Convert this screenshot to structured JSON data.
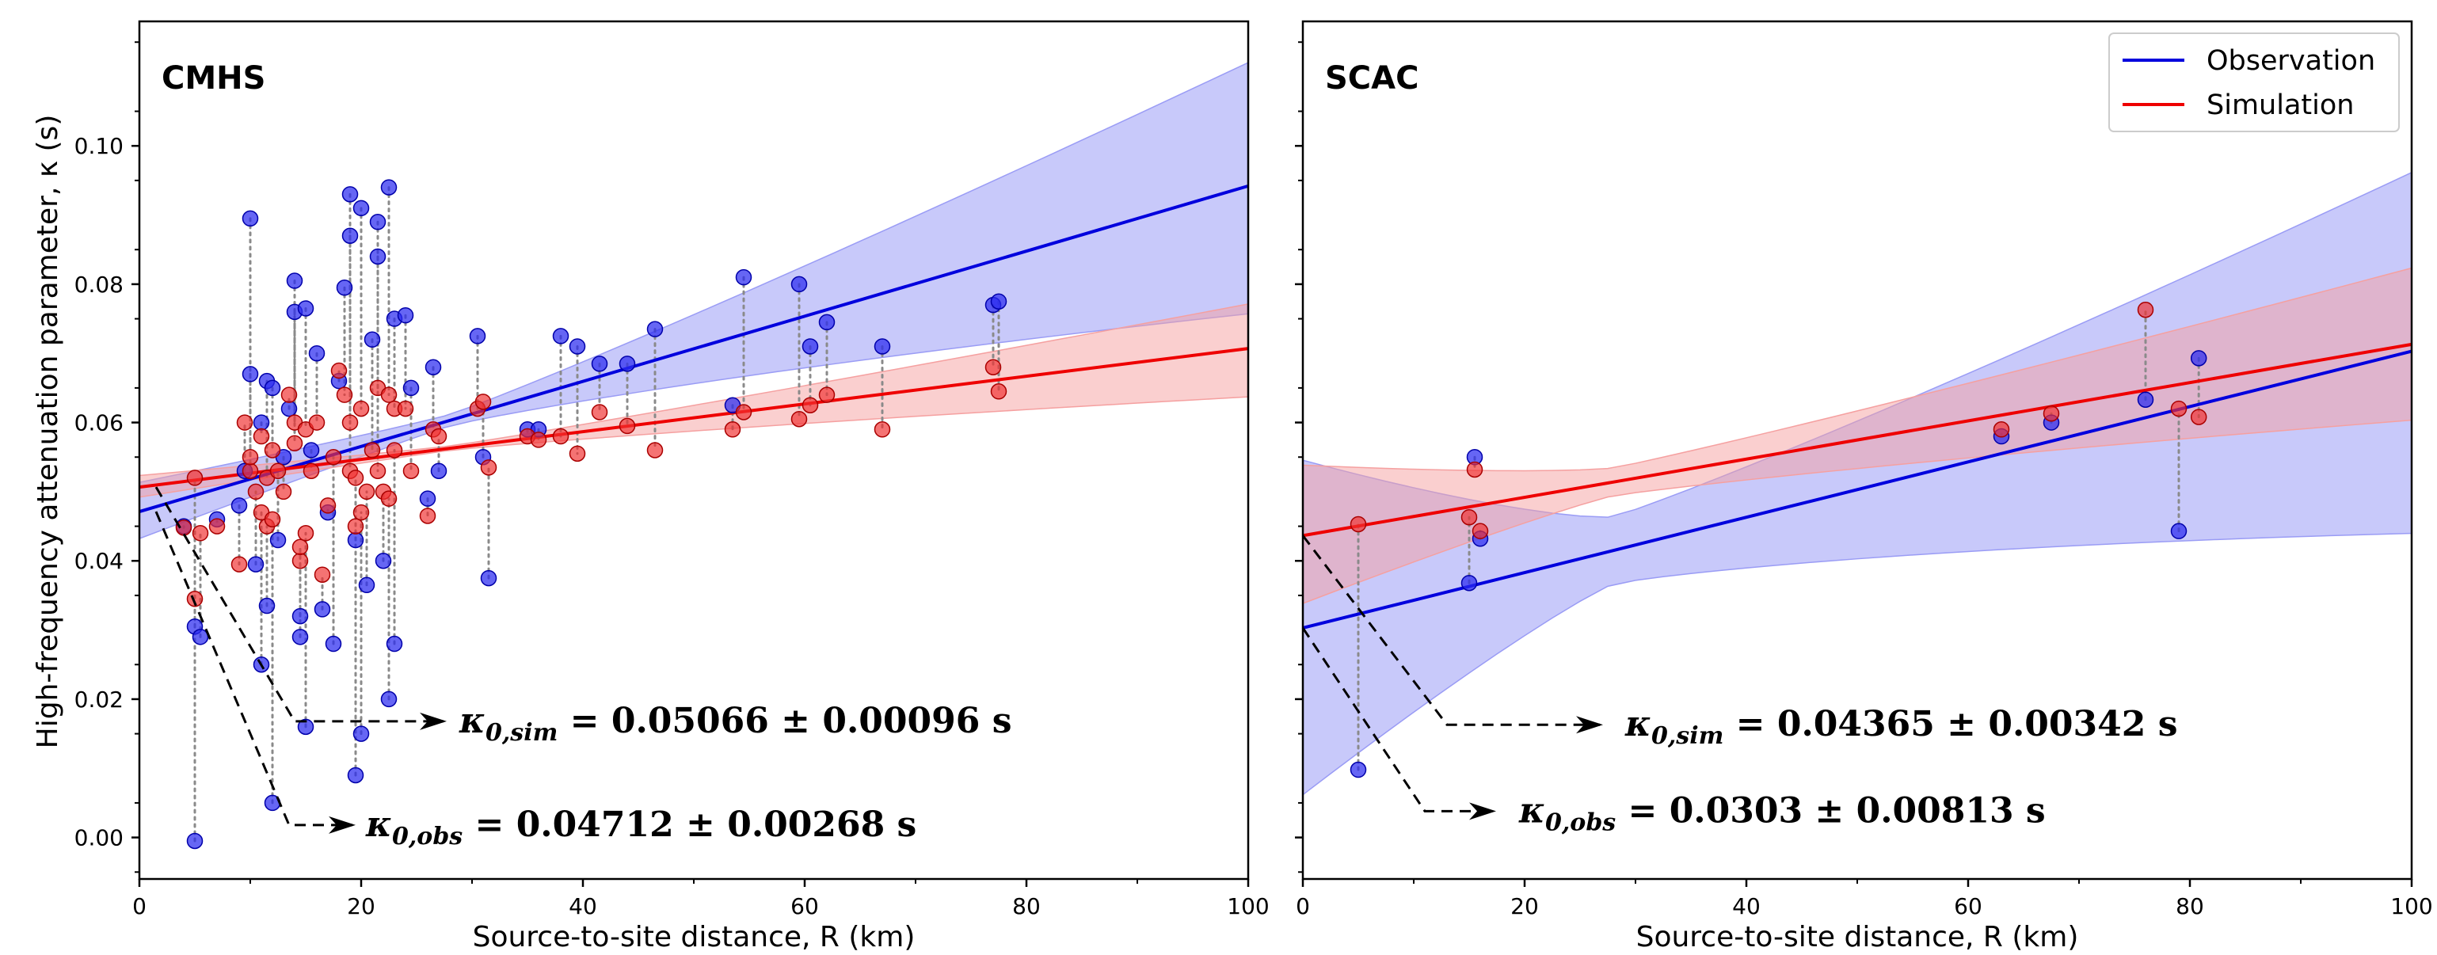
{
  "figure": {
    "ylabel": "High-frequency attenuation parameter, κ (s)",
    "xlabel": "Source-to-site distance, R (km)",
    "legend": {
      "location": "top-right of right panel",
      "entries": [
        {
          "label": "Observation",
          "color": "#0000dd"
        },
        {
          "label": "Simulation",
          "color": "#ee0000"
        }
      ]
    },
    "colors": {
      "observation": "#0000dd",
      "simulation": "#ee0000",
      "obs_band": "#9a9cf5",
      "sim_band": "#f5a0a0",
      "marker_obs": "#2b2bf0",
      "marker_sim": "#f03030"
    }
  },
  "chart_data": [
    {
      "type": "scatter",
      "title": "CMHS",
      "xlim": [
        0,
        100
      ],
      "ylim": [
        -0.006,
        0.118
      ],
      "xticks": [
        "0",
        "20",
        "40",
        "60",
        "80",
        "100"
      ],
      "yticks": [
        "0.00",
        "0.02",
        "0.04",
        "0.06",
        "0.08",
        "0.10"
      ],
      "fits": {
        "observation": {
          "x": [
            0,
            100
          ],
          "y": [
            0.04712,
            0.0942
          ],
          "band_lower": [
            0.044,
            0.0765
          ],
          "band_upper": [
            0.0505,
            0.1112
          ]
        },
        "simulation": {
          "x": [
            0,
            100
          ],
          "y": [
            0.05066,
            0.0707
          ],
          "band_lower": [
            0.0495,
            0.064
          ],
          "band_upper": [
            0.052,
            0.0768
          ]
        }
      },
      "annotations": [
        {
          "symbol": "κ",
          "subscript": "0,sim",
          "text": "= 0.05066 ± 0.00096 s",
          "target_y": 0.05066
        },
        {
          "symbol": "κ",
          "subscript": "0,obs",
          "text": "= 0.04712 ± 0.00268 s",
          "target_y": 0.04712
        }
      ],
      "pairs": [
        {
          "x": 4.0,
          "obs": 0.045,
          "sim": 0.0448
        },
        {
          "x": 5.0,
          "obs": -0.0005,
          "sim": 0.0345
        },
        {
          "x": 5.0,
          "obs": 0.0305,
          "sim": 0.052
        },
        {
          "x": 5.5,
          "obs": 0.029,
          "sim": 0.044
        },
        {
          "x": 7.0,
          "obs": 0.046,
          "sim": 0.045
        },
        {
          "x": 9.0,
          "obs": 0.048,
          "sim": 0.0395
        },
        {
          "x": 9.5,
          "obs": 0.053,
          "sim": 0.06
        },
        {
          "x": 10.0,
          "obs": 0.0895,
          "sim": 0.053
        },
        {
          "x": 10.0,
          "obs": 0.067,
          "sim": 0.055
        },
        {
          "x": 10.5,
          "obs": 0.0395,
          "sim": 0.05
        },
        {
          "x": 11.0,
          "obs": 0.025,
          "sim": 0.047
        },
        {
          "x": 11.0,
          "obs": 0.06,
          "sim": 0.058
        },
        {
          "x": 11.5,
          "obs": 0.0335,
          "sim": 0.045
        },
        {
          "x": 11.5,
          "obs": 0.066,
          "sim": 0.052
        },
        {
          "x": 12.0,
          "obs": 0.005,
          "sim": 0.046
        },
        {
          "x": 12.0,
          "obs": 0.065,
          "sim": 0.056
        },
        {
          "x": 12.5,
          "obs": 0.043,
          "sim": 0.053
        },
        {
          "x": 13.0,
          "obs": 0.055,
          "sim": 0.05
        },
        {
          "x": 13.5,
          "obs": 0.062,
          "sim": 0.064
        },
        {
          "x": 14.0,
          "obs": 0.076,
          "sim": 0.06
        },
        {
          "x": 14.0,
          "obs": 0.0805,
          "sim": 0.057
        },
        {
          "x": 14.5,
          "obs": 0.032,
          "sim": 0.04
        },
        {
          "x": 14.5,
          "obs": 0.029,
          "sim": 0.042
        },
        {
          "x": 15.0,
          "obs": 0.016,
          "sim": 0.044
        },
        {
          "x": 15.0,
          "obs": 0.0765,
          "sim": 0.059
        },
        {
          "x": 15.5,
          "obs": 0.056,
          "sim": 0.053
        },
        {
          "x": 16.0,
          "obs": 0.07,
          "sim": 0.06
        },
        {
          "x": 16.5,
          "obs": 0.033,
          "sim": 0.038
        },
        {
          "x": 17.0,
          "obs": 0.047,
          "sim": 0.048
        },
        {
          "x": 17.5,
          "obs": 0.028,
          "sim": 0.055
        },
        {
          "x": 18.0,
          "obs": 0.066,
          "sim": 0.0675
        },
        {
          "x": 18.5,
          "obs": 0.0795,
          "sim": 0.064
        },
        {
          "x": 19.0,
          "obs": 0.093,
          "sim": 0.06
        },
        {
          "x": 19.0,
          "obs": 0.087,
          "sim": 0.053
        },
        {
          "x": 19.5,
          "obs": 0.009,
          "sim": 0.045
        },
        {
          "x": 19.5,
          "obs": 0.043,
          "sim": 0.052
        },
        {
          "x": 20.0,
          "obs": 0.015,
          "sim": 0.047
        },
        {
          "x": 20.0,
          "obs": 0.091,
          "sim": 0.062
        },
        {
          "x": 20.5,
          "obs": 0.0365,
          "sim": 0.05
        },
        {
          "x": 21.0,
          "obs": 0.072,
          "sim": 0.056
        },
        {
          "x": 21.5,
          "obs": 0.089,
          "sim": 0.065
        },
        {
          "x": 21.5,
          "obs": 0.084,
          "sim": 0.053
        },
        {
          "x": 22.0,
          "obs": 0.04,
          "sim": 0.05
        },
        {
          "x": 22.5,
          "obs": 0.094,
          "sim": 0.064
        },
        {
          "x": 22.5,
          "obs": 0.02,
          "sim": 0.049
        },
        {
          "x": 23.0,
          "obs": 0.028,
          "sim": 0.056
        },
        {
          "x": 23.0,
          "obs": 0.075,
          "sim": 0.062
        },
        {
          "x": 24.0,
          "obs": 0.0755,
          "sim": 0.062
        },
        {
          "x": 24.5,
          "obs": 0.065,
          "sim": 0.053
        },
        {
          "x": 26.0,
          "obs": 0.049,
          "sim": 0.0465
        },
        {
          "x": 26.5,
          "obs": 0.068,
          "sim": 0.059
        },
        {
          "x": 27.0,
          "obs": 0.053,
          "sim": 0.058
        },
        {
          "x": 30.5,
          "obs": 0.0725,
          "sim": 0.062
        },
        {
          "x": 31.0,
          "obs": 0.055,
          "sim": 0.063
        },
        {
          "x": 31.5,
          "obs": 0.0375,
          "sim": 0.0535
        },
        {
          "x": 35.0,
          "obs": 0.059,
          "sim": 0.058
        },
        {
          "x": 36.0,
          "obs": 0.059,
          "sim": 0.0575
        },
        {
          "x": 38.0,
          "obs": 0.0725,
          "sim": 0.058
        },
        {
          "x": 39.5,
          "obs": 0.071,
          "sim": 0.0555
        },
        {
          "x": 41.5,
          "obs": 0.0685,
          "sim": 0.0615
        },
        {
          "x": 44.0,
          "obs": 0.0685,
          "sim": 0.0595
        },
        {
          "x": 46.5,
          "obs": 0.0735,
          "sim": 0.056
        },
        {
          "x": 53.5,
          "obs": 0.0625,
          "sim": 0.059
        },
        {
          "x": 54.5,
          "obs": 0.081,
          "sim": 0.0615
        },
        {
          "x": 59.5,
          "obs": 0.08,
          "sim": 0.0605
        },
        {
          "x": 60.5,
          "obs": 0.071,
          "sim": 0.0625
        },
        {
          "x": 62.0,
          "obs": 0.0745,
          "sim": 0.064
        },
        {
          "x": 67.0,
          "obs": 0.071,
          "sim": 0.059
        },
        {
          "x": 77.0,
          "obs": 0.077,
          "sim": 0.068
        },
        {
          "x": 77.5,
          "obs": 0.0775,
          "sim": 0.0645
        }
      ]
    },
    {
      "type": "scatter",
      "title": "SCAC",
      "xlim": [
        0,
        100
      ],
      "ylim": [
        -0.006,
        0.118
      ],
      "xticks": [
        "0",
        "20",
        "40",
        "60",
        "80",
        "100"
      ],
      "yticks": [
        "0.00",
        "0.02",
        "0.04",
        "0.06",
        "0.08",
        "0.10"
      ],
      "fits": {
        "observation": {
          "x": [
            0,
            100
          ],
          "y": [
            0.0303,
            0.0703
          ],
          "band_lower": [
            0.011,
            0.0488
          ],
          "band_upper": [
            0.0497,
            0.0913
          ]
        },
        "simulation": {
          "x": [
            0,
            100
          ],
          "y": [
            0.04365,
            0.0713
          ],
          "band_lower": [
            0.0358,
            0.0623
          ],
          "band_upper": [
            0.0518,
            0.0803
          ]
        }
      },
      "annotations": [
        {
          "symbol": "κ",
          "subscript": "0,sim",
          "text": "= 0.04365 ± 0.00342 s",
          "target_y": 0.04365
        },
        {
          "symbol": "κ",
          "subscript": "0,obs",
          "text": "= 0.0303 ± 0.00813 s",
          "target_y": 0.0303
        }
      ],
      "pairs": [
        {
          "x": 5.0,
          "obs": 0.0098,
          "sim": 0.0453
        },
        {
          "x": 15.0,
          "obs": 0.0368,
          "sim": 0.0463
        },
        {
          "x": 15.5,
          "obs": 0.055,
          "sim": 0.0532
        },
        {
          "x": 16.0,
          "obs": 0.0432,
          "sim": 0.0443
        },
        {
          "x": 63.0,
          "obs": 0.058,
          "sim": 0.059
        },
        {
          "x": 67.5,
          "obs": 0.06,
          "sim": 0.0613
        },
        {
          "x": 76.0,
          "obs": 0.0633,
          "sim": 0.0763
        },
        {
          "x": 79.0,
          "obs": 0.0443,
          "sim": 0.062
        },
        {
          "x": 80.8,
          "obs": 0.0693,
          "sim": 0.0608
        }
      ]
    }
  ]
}
